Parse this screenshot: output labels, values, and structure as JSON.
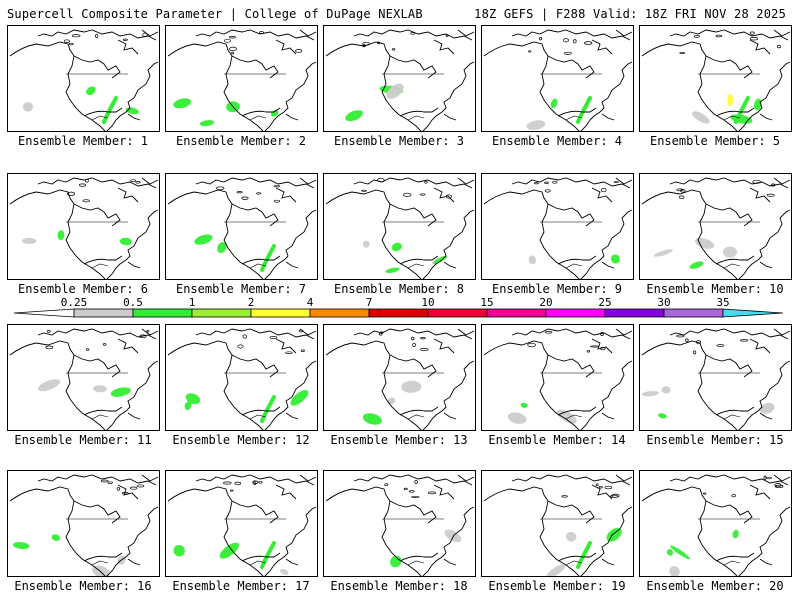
{
  "header": {
    "left_title": "Supercell Composite Parameter | College of DuPage NEXLAB",
    "right_title": "18Z GEFS | F288 Valid: 18Z FRI NOV 28 2025"
  },
  "members": [
    {
      "label": "Ensemble Member: 1"
    },
    {
      "label": "Ensemble Member: 2"
    },
    {
      "label": "Ensemble Member: 3"
    },
    {
      "label": "Ensemble Member: 4"
    },
    {
      "label": "Ensemble Member: 5"
    },
    {
      "label": "Ensemble Member: 6"
    },
    {
      "label": "Ensemble Member: 7"
    },
    {
      "label": "Ensemble Member: 8"
    },
    {
      "label": "Ensemble Member: 9"
    },
    {
      "label": "Ensemble Member: 10"
    },
    {
      "label": "Ensemble Member: 11"
    },
    {
      "label": "Ensemble Member: 12"
    },
    {
      "label": "Ensemble Member: 13"
    },
    {
      "label": "Ensemble Member: 14"
    },
    {
      "label": "Ensemble Member: 15"
    },
    {
      "label": "Ensemble Member: 16"
    },
    {
      "label": "Ensemble Member: 17"
    },
    {
      "label": "Ensemble Member: 18"
    },
    {
      "label": "Ensemble Member: 19"
    },
    {
      "label": "Ensemble Member: 20"
    }
  ],
  "colorbar": {
    "ticks": [
      "0.25",
      "0.5",
      "1",
      "2",
      "4",
      "7",
      "10",
      "15",
      "20",
      "25",
      "30",
      "35"
    ],
    "colors": [
      "#cccccc",
      "#33ee33",
      "#99ee33",
      "#ffff33",
      "#ff8800",
      "#dd0000",
      "#ee0033",
      "#ee0099",
      "#ff00ff",
      "#8800dd",
      "#aa66dd",
      "#44ddee"
    ]
  },
  "colors": {
    "low": "#cccccc",
    "mid": "#33ee33",
    "high": "#ffff33",
    "outline": "#000000"
  }
}
